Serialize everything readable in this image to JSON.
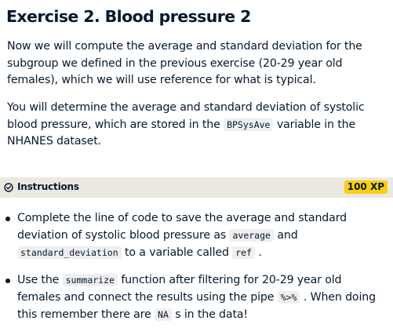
{
  "exercise": {
    "title": "Exercise 2. Blood pressure 2",
    "paragraph1": "Now we will compute the average and standard deviation for the subgroup we defined in the previous exercise (20-29 year old females), which we will use reference for what is typical.",
    "paragraph2": {
      "before": "You will determine the average and standard deviation of systolic blood pressure, which are stored in the",
      "code": "BPSysAve",
      "after": "variable in the NHANES dataset."
    }
  },
  "instructions": {
    "label": "Instructions",
    "xp": "100 XP",
    "icon": "check-circle-icon",
    "bullets": [
      {
        "t1": "Complete the line of code to save the average and standard deviation of systolic blood pressure as",
        "c1": "average",
        "t2": "and",
        "c2": "standard_deviation",
        "t3": "to a variable called",
        "c3": "ref",
        "t4": "."
      },
      {
        "t1": "Use the",
        "c1": "summarize",
        "t2": "function after filtering for 20-29 year old females and connect the results using the pipe",
        "c2": "%>%",
        "t3": ". When doing this remember there are",
        "c3": "NA",
        "t4": "s in the data!"
      }
    ]
  }
}
